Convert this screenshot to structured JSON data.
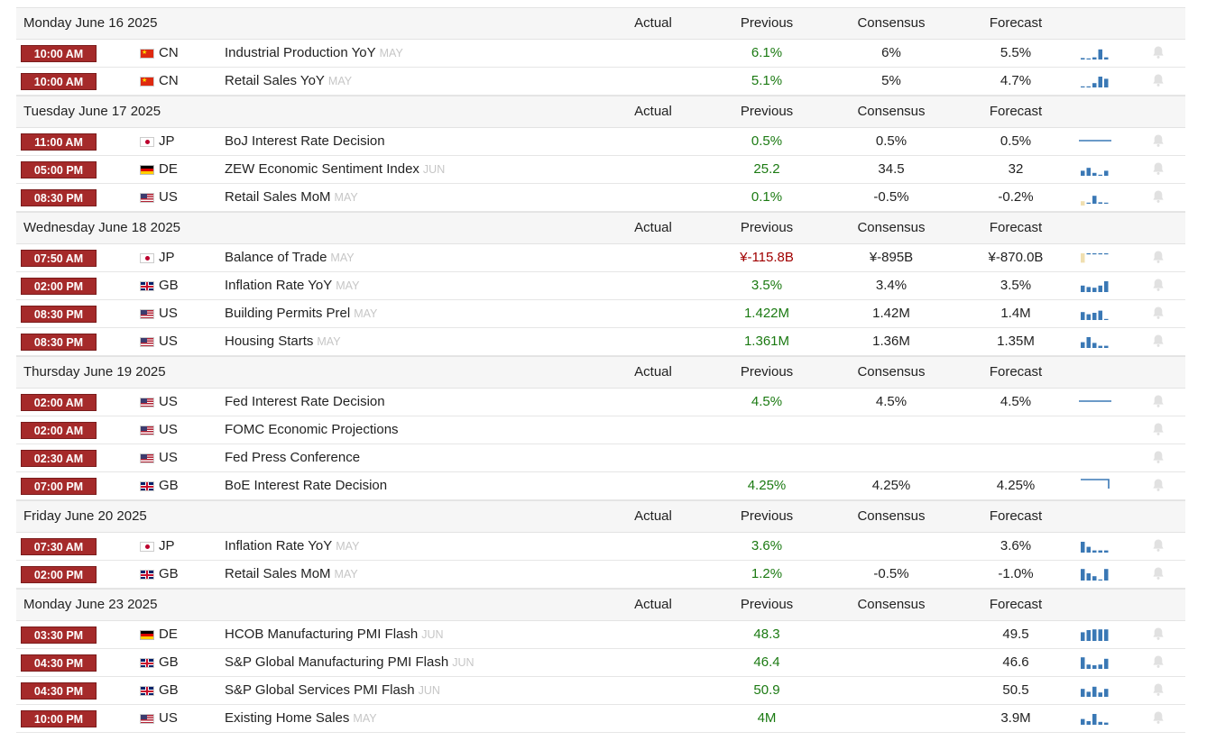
{
  "columns": {
    "actual": "Actual",
    "previous": "Previous",
    "consensus": "Consensus",
    "forecast": "Forecast"
  },
  "colors": {
    "time_badge": "#a52a2a",
    "positive": "#1b7a12",
    "negative": "#a00000",
    "spark_bar": "#3a78b5",
    "spark_negative": "#f0dfb0"
  },
  "days": [
    {
      "title": "Monday June 16 2025",
      "events": [
        {
          "time": "10:00 AM",
          "flag": "cn",
          "country": "CN",
          "name": "Industrial Production YoY",
          "ref": "MAY",
          "actual": "",
          "previous": "6.1%",
          "prev_color": "pos",
          "consensus": "6%",
          "forecast": "5.5%",
          "spark": "bars",
          "spark_values": [
            0.1,
            0,
            0.15,
            0.7,
            0.15
          ]
        },
        {
          "time": "10:00 AM",
          "flag": "cn",
          "country": "CN",
          "name": "Retail Sales YoY",
          "ref": "MAY",
          "actual": "",
          "previous": "5.1%",
          "prev_color": "pos",
          "consensus": "5%",
          "forecast": "4.7%",
          "spark": "bars",
          "spark_values": [
            0.05,
            0,
            0.3,
            0.75,
            0.6
          ]
        }
      ]
    },
    {
      "title": "Tuesday June 17 2025",
      "events": [
        {
          "time": "11:00 AM",
          "flag": "jp",
          "country": "JP",
          "name": "BoJ Interest Rate Decision",
          "ref": "",
          "actual": "",
          "previous": "0.5%",
          "prev_color": "pos",
          "consensus": "0.5%",
          "forecast": "0.5%",
          "spark": "flatline",
          "spark_values": [
            0.5,
            0.5,
            0.5,
            0.5,
            0.5
          ]
        },
        {
          "time": "05:00 PM",
          "flag": "de",
          "country": "DE",
          "name": "ZEW Economic Sentiment Index",
          "ref": "JUN",
          "actual": "",
          "previous": "25.2",
          "prev_color": "pos",
          "consensus": "34.5",
          "forecast": "32",
          "spark": "bars",
          "spark_values": [
            0.35,
            0.55,
            0.2,
            0,
            0.35
          ]
        },
        {
          "time": "08:30 PM",
          "flag": "us",
          "country": "US",
          "name": "Retail Sales MoM",
          "ref": "MAY",
          "actual": "",
          "previous": "0.1%",
          "prev_color": "pos",
          "consensus": "-0.5%",
          "forecast": "-0.2%",
          "spark": "bars",
          "spark_values": [
            -0.3,
            0,
            0.55,
            0.1,
            0.05
          ]
        }
      ]
    },
    {
      "title": "Wednesday June 18 2025",
      "events": [
        {
          "time": "07:50 AM",
          "flag": "jp",
          "country": "JP",
          "name": "Balance of Trade",
          "ref": "MAY",
          "actual": "",
          "previous": "¥-115.8B",
          "prev_color": "neg",
          "consensus": "¥-895B",
          "forecast": "¥-870.0B",
          "spark": "bars_neg",
          "spark_values": [
            -0.65,
            0.05,
            0.1,
            0.05,
            0.05
          ]
        },
        {
          "time": "02:00 PM",
          "flag": "gb",
          "country": "GB",
          "name": "Inflation Rate YoY",
          "ref": "MAY",
          "actual": "",
          "previous": "3.5%",
          "prev_color": "pos",
          "consensus": "3.4%",
          "forecast": "3.5%",
          "spark": "bars",
          "spark_values": [
            0.45,
            0.35,
            0.3,
            0.45,
            0.75
          ]
        },
        {
          "time": "08:30 PM",
          "flag": "us",
          "country": "US",
          "name": "Building Permits Prel",
          "ref": "MAY",
          "actual": "",
          "previous": "1.422M",
          "prev_color": "pos",
          "consensus": "1.42M",
          "forecast": "1.4M",
          "spark": "bars",
          "spark_values": [
            0.55,
            0.4,
            0.5,
            0.65,
            0.05
          ]
        },
        {
          "time": "08:30 PM",
          "flag": "us",
          "country": "US",
          "name": "Housing Starts",
          "ref": "MAY",
          "actual": "",
          "previous": "1.361M",
          "prev_color": "pos",
          "consensus": "1.36M",
          "forecast": "1.35M",
          "spark": "bars",
          "spark_values": [
            0.4,
            0.75,
            0.35,
            0.15,
            0.15
          ]
        }
      ]
    },
    {
      "title": "Thursday June 19 2025",
      "events": [
        {
          "time": "02:00 AM",
          "flag": "us",
          "country": "US",
          "name": "Fed Interest Rate Decision",
          "ref": "",
          "actual": "",
          "previous": "4.5%",
          "prev_color": "pos",
          "consensus": "4.5%",
          "forecast": "4.5%",
          "spark": "flatline",
          "spark_values": [
            0.5,
            0.5,
            0.5,
            0.5,
            0.5
          ]
        },
        {
          "time": "02:00 AM",
          "flag": "us",
          "country": "US",
          "name": "FOMC Economic Projections",
          "ref": "",
          "actual": "",
          "previous": "",
          "prev_color": "pos",
          "consensus": "",
          "forecast": "",
          "spark": "none",
          "spark_values": []
        },
        {
          "time": "02:30 AM",
          "flag": "us",
          "country": "US",
          "name": "Fed Press Conference",
          "ref": "",
          "actual": "",
          "previous": "",
          "prev_color": "pos",
          "consensus": "",
          "forecast": "",
          "spark": "none",
          "spark_values": []
        },
        {
          "time": "07:00 PM",
          "flag": "gb",
          "country": "GB",
          "name": "BoE Interest Rate Decision",
          "ref": "",
          "actual": "",
          "previous": "4.25%",
          "prev_color": "pos",
          "consensus": "4.25%",
          "forecast": "4.25%",
          "spark": "stepline",
          "spark_values": [
            0.9,
            0.9,
            0.9,
            0.9,
            0.1
          ]
        }
      ]
    },
    {
      "title": "Friday June 20 2025",
      "events": [
        {
          "time": "07:30 AM",
          "flag": "jp",
          "country": "JP",
          "name": "Inflation Rate YoY",
          "ref": "MAY",
          "actual": "",
          "previous": "3.6%",
          "prev_color": "pos",
          "consensus": "",
          "forecast": "3.6%",
          "spark": "bars",
          "spark_values": [
            0.75,
            0.4,
            0.15,
            0.15,
            0.15
          ]
        },
        {
          "time": "02:00 PM",
          "flag": "gb",
          "country": "GB",
          "name": "Retail Sales MoM",
          "ref": "MAY",
          "actual": "",
          "previous": "1.2%",
          "prev_color": "pos",
          "consensus": "-0.5%",
          "forecast": "-1.0%",
          "spark": "bars",
          "spark_values": [
            0.8,
            0.5,
            0.3,
            0.05,
            0.8
          ]
        }
      ]
    },
    {
      "title": "Monday June 23 2025",
      "events": [
        {
          "time": "03:30 PM",
          "flag": "de",
          "country": "DE",
          "name": "HCOB Manufacturing PMI Flash",
          "ref": "JUN",
          "actual": "",
          "previous": "48.3",
          "prev_color": "pos",
          "consensus": "",
          "forecast": "49.5",
          "spark": "bars",
          "spark_values": [
            0.6,
            0.75,
            0.8,
            0.8,
            0.8
          ]
        },
        {
          "time": "04:30 PM",
          "flag": "gb",
          "country": "GB",
          "name": "S&P Global Manufacturing PMI Flash",
          "ref": "JUN",
          "actual": "",
          "previous": "46.4",
          "prev_color": "pos",
          "consensus": "",
          "forecast": "46.6",
          "spark": "bars",
          "spark_values": [
            0.8,
            0.3,
            0.25,
            0.3,
            0.7
          ]
        },
        {
          "time": "04:30 PM",
          "flag": "gb",
          "country": "GB",
          "name": "S&P Global Services PMI Flash",
          "ref": "JUN",
          "actual": "",
          "previous": "50.9",
          "prev_color": "pos",
          "consensus": "",
          "forecast": "50.5",
          "spark": "bars",
          "spark_values": [
            0.55,
            0.35,
            0.7,
            0.3,
            0.55
          ]
        },
        {
          "time": "10:00 PM",
          "flag": "us",
          "country": "US",
          "name": "Existing Home Sales",
          "ref": "MAY",
          "actual": "",
          "previous": "4M",
          "prev_color": "pos",
          "consensus": "",
          "forecast": "3.9M",
          "spark": "bars",
          "spark_values": [
            0.4,
            0.25,
            0.75,
            0.2,
            0.15
          ]
        }
      ]
    }
  ]
}
